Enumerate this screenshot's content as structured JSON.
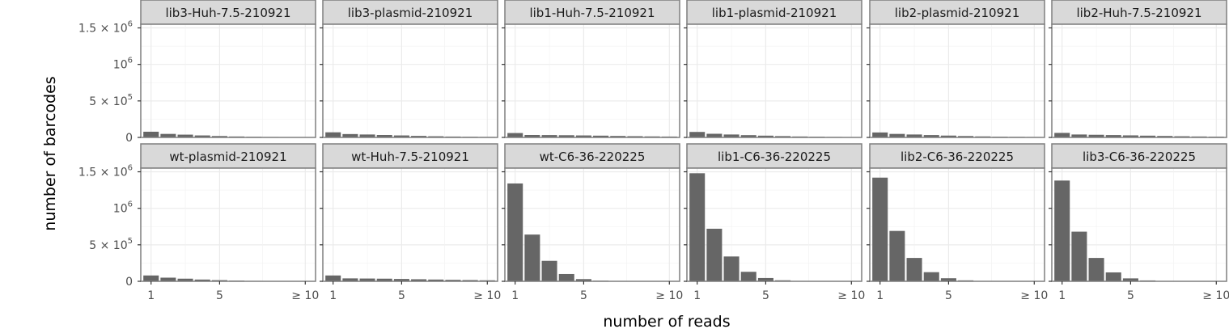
{
  "chart_data": {
    "type": "bar",
    "xlabel": "number of reads",
    "ylabel": "number of barcodes",
    "x_categories": [
      1,
      2,
      3,
      4,
      5,
      6,
      7,
      8,
      9,
      10
    ],
    "x_tick_labels": [
      {
        "value": 1,
        "label": "1"
      },
      {
        "value": 5,
        "label": "5"
      },
      {
        "value": 10,
        "label": "≥ 10"
      }
    ],
    "y_tick_labels": [
      {
        "value": 0,
        "label": "0",
        "mantissa": "",
        "exp": ""
      },
      {
        "value": 500000,
        "label": "5 × 10^5",
        "mantissa": "5 × 10",
        "exp": "5"
      },
      {
        "value": 1000000,
        "label": "10^6",
        "mantissa": "10",
        "exp": "6"
      },
      {
        "value": 1500000,
        "label": "1.5 × 10^6",
        "mantissa": "1.5 × 10",
        "exp": "6"
      }
    ],
    "ylim": [
      0,
      1550000
    ],
    "grid": true,
    "facets": [
      {
        "label": "lib3-Huh-7.5-210921",
        "values": [
          78000,
          48000,
          38000,
          27000,
          19000,
          13000,
          9000,
          6000,
          4000,
          3000
        ]
      },
      {
        "label": "lib3-plasmid-210921",
        "values": [
          70000,
          46000,
          40000,
          33000,
          27000,
          21000,
          16000,
          12000,
          9000,
          7000
        ]
      },
      {
        "label": "lib1-Huh-7.5-210921",
        "values": [
          60000,
          33000,
          32000,
          30000,
          27000,
          24000,
          20000,
          17000,
          14000,
          12000
        ]
      },
      {
        "label": "lib1-plasmid-210921",
        "values": [
          75000,
          50000,
          40000,
          31000,
          24000,
          18000,
          13000,
          10000,
          7000,
          5000
        ]
      },
      {
        "label": "lib2-plasmid-210921",
        "values": [
          68000,
          48000,
          40000,
          32000,
          25000,
          19000,
          14000,
          10000,
          8000,
          6000
        ]
      },
      {
        "label": "lib2-Huh-7.5-210921",
        "values": [
          62000,
          40000,
          36000,
          32000,
          28000,
          24000,
          20000,
          16000,
          13000,
          11000
        ]
      },
      {
        "label": "wt-plasmid-210921",
        "values": [
          80000,
          50000,
          36000,
          24000,
          16000,
          10000,
          6000,
          4000,
          3000,
          2000
        ]
      },
      {
        "label": "wt-Huh-7.5-210921",
        "values": [
          80000,
          40000,
          38000,
          36000,
          32000,
          28000,
          24000,
          20000,
          17000,
          14000
        ]
      },
      {
        "label": "wt-C6-36-220225",
        "values": [
          1340000,
          640000,
          280000,
          100000,
          30000,
          9000,
          3000,
          1000,
          500,
          300
        ]
      },
      {
        "label": "lib1-C6-36-220225",
        "values": [
          1480000,
          720000,
          340000,
          130000,
          45000,
          14000,
          5000,
          2000,
          800,
          500
        ]
      },
      {
        "label": "lib2-C6-36-220225",
        "values": [
          1420000,
          690000,
          320000,
          125000,
          42000,
          13000,
          5000,
          2000,
          800,
          500
        ]
      },
      {
        "label": "lib3-C6-36-220225",
        "values": [
          1380000,
          680000,
          320000,
          122000,
          40000,
          12000,
          4500,
          1800,
          700,
          400
        ]
      }
    ]
  }
}
